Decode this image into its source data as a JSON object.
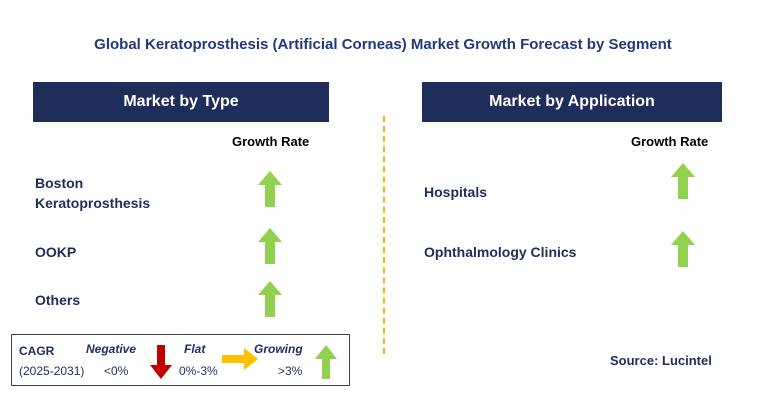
{
  "title": "Global Keratoprosthesis (Artificial Corneas) Market Growth Forecast by Segment",
  "colors": {
    "header_bg": "#1f2d5a",
    "up_arrow": "#92d050",
    "down_arrow": "#c00000",
    "flat_arrow": "#ffc000",
    "divider": "#f5b400"
  },
  "chart_data": {
    "type": "table",
    "panels": [
      {
        "header": "Market by Type",
        "column_label": "Growth Rate",
        "rows": [
          {
            "label": "Boston Keratoprosthesis",
            "trend": "growing"
          },
          {
            "label": "OOKP",
            "trend": "growing"
          },
          {
            "label": "Others",
            "trend": "growing"
          }
        ]
      },
      {
        "header": "Market by Application",
        "column_label": "Growth Rate",
        "rows": [
          {
            "label": "Hospitals",
            "trend": "growing"
          },
          {
            "label": "Ophthalmology Clinics",
            "trend": "growing"
          }
        ]
      }
    ],
    "legend": {
      "cagr_label": "CAGR",
      "period": "(2025-2031)",
      "negative": {
        "label": "Negative",
        "range": "<0%",
        "icon": "down-arrow-icon"
      },
      "flat": {
        "label": "Flat",
        "range": "0%-3%",
        "icon": "right-arrow-icon"
      },
      "growing": {
        "label": "Growing",
        "range": ">3%",
        "icon": "up-arrow-icon"
      }
    }
  },
  "source": "Source: Lucintel"
}
